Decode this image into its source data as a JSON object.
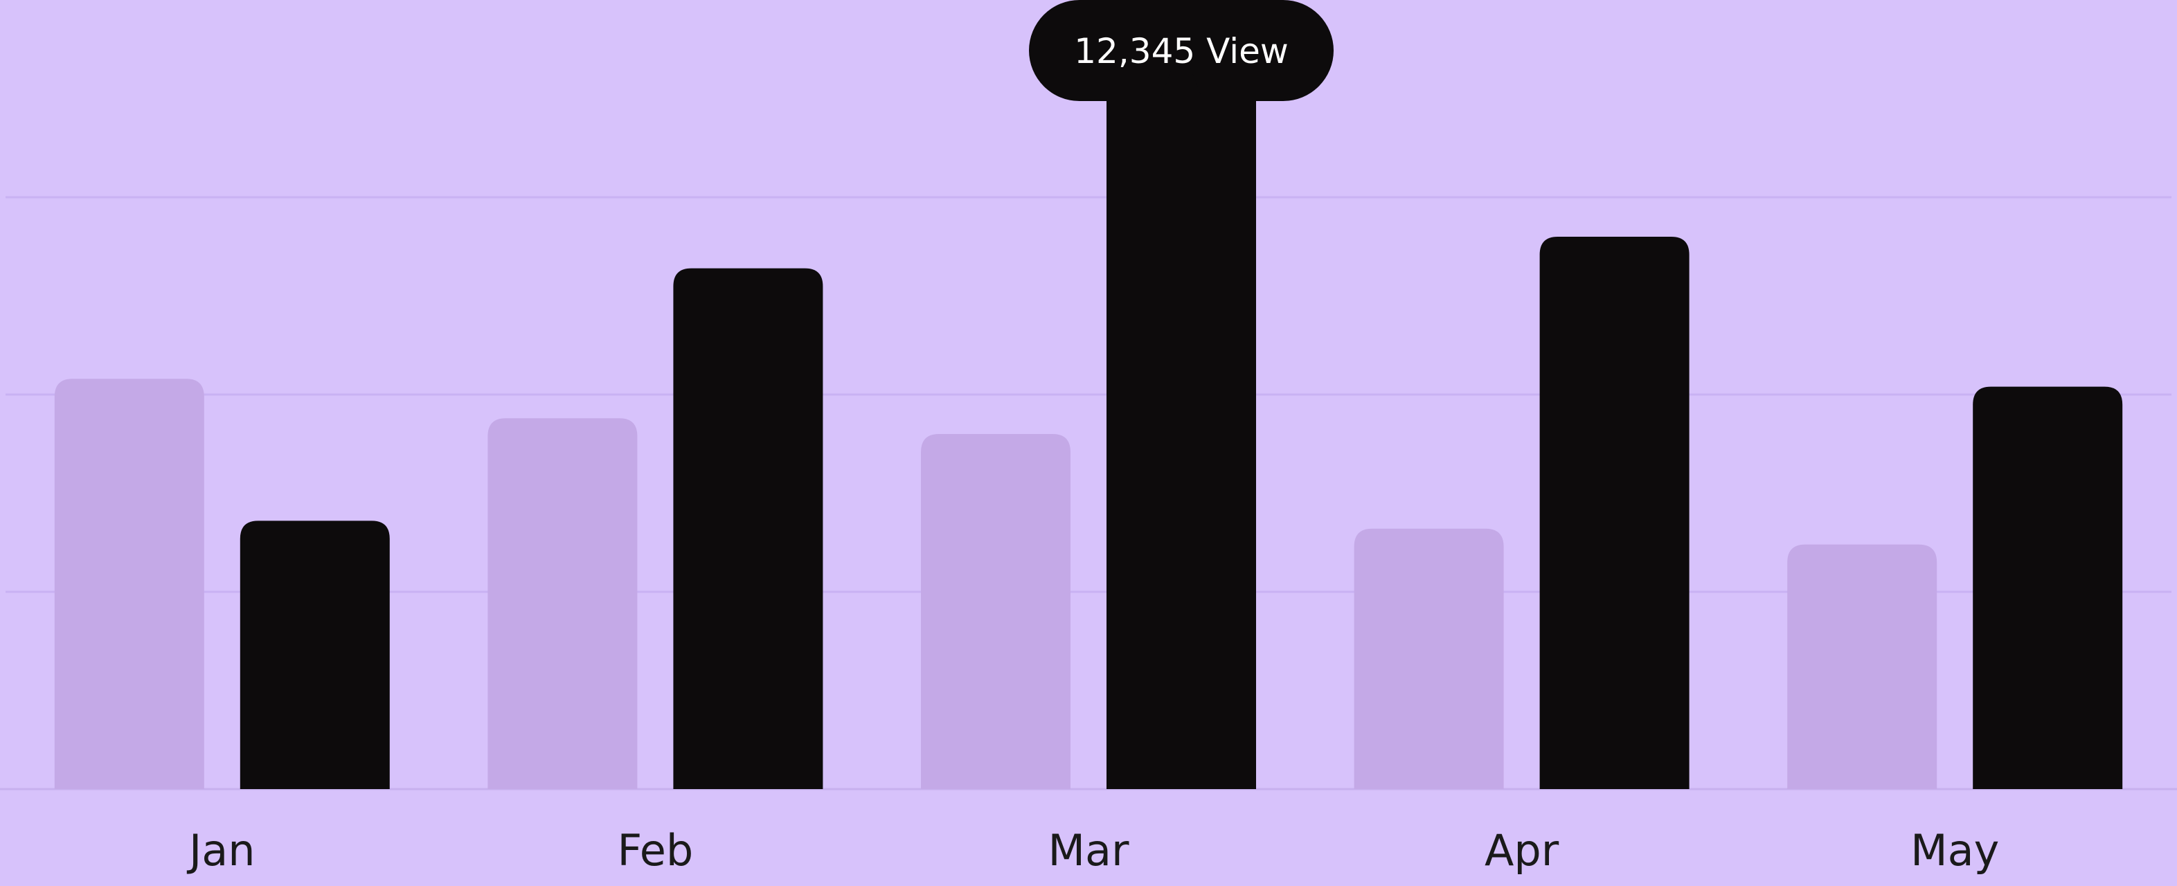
{
  "chart_data": {
    "type": "bar",
    "categories": [
      "Jan",
      "Feb",
      "Mar",
      "Apr",
      "May"
    ],
    "series": [
      {
        "values": [
          52,
          47,
          45,
          33,
          31
        ],
        "color": "#c4a9e7"
      },
      {
        "values": [
          34,
          66,
          90,
          70,
          51
        ],
        "color": "#0d0b0c"
      }
    ],
    "ylim": [
      0,
      100
    ],
    "grid": true,
    "background": "#d7c2fb",
    "tooltip": {
      "category": "Mar",
      "text": "12,345 View"
    }
  }
}
